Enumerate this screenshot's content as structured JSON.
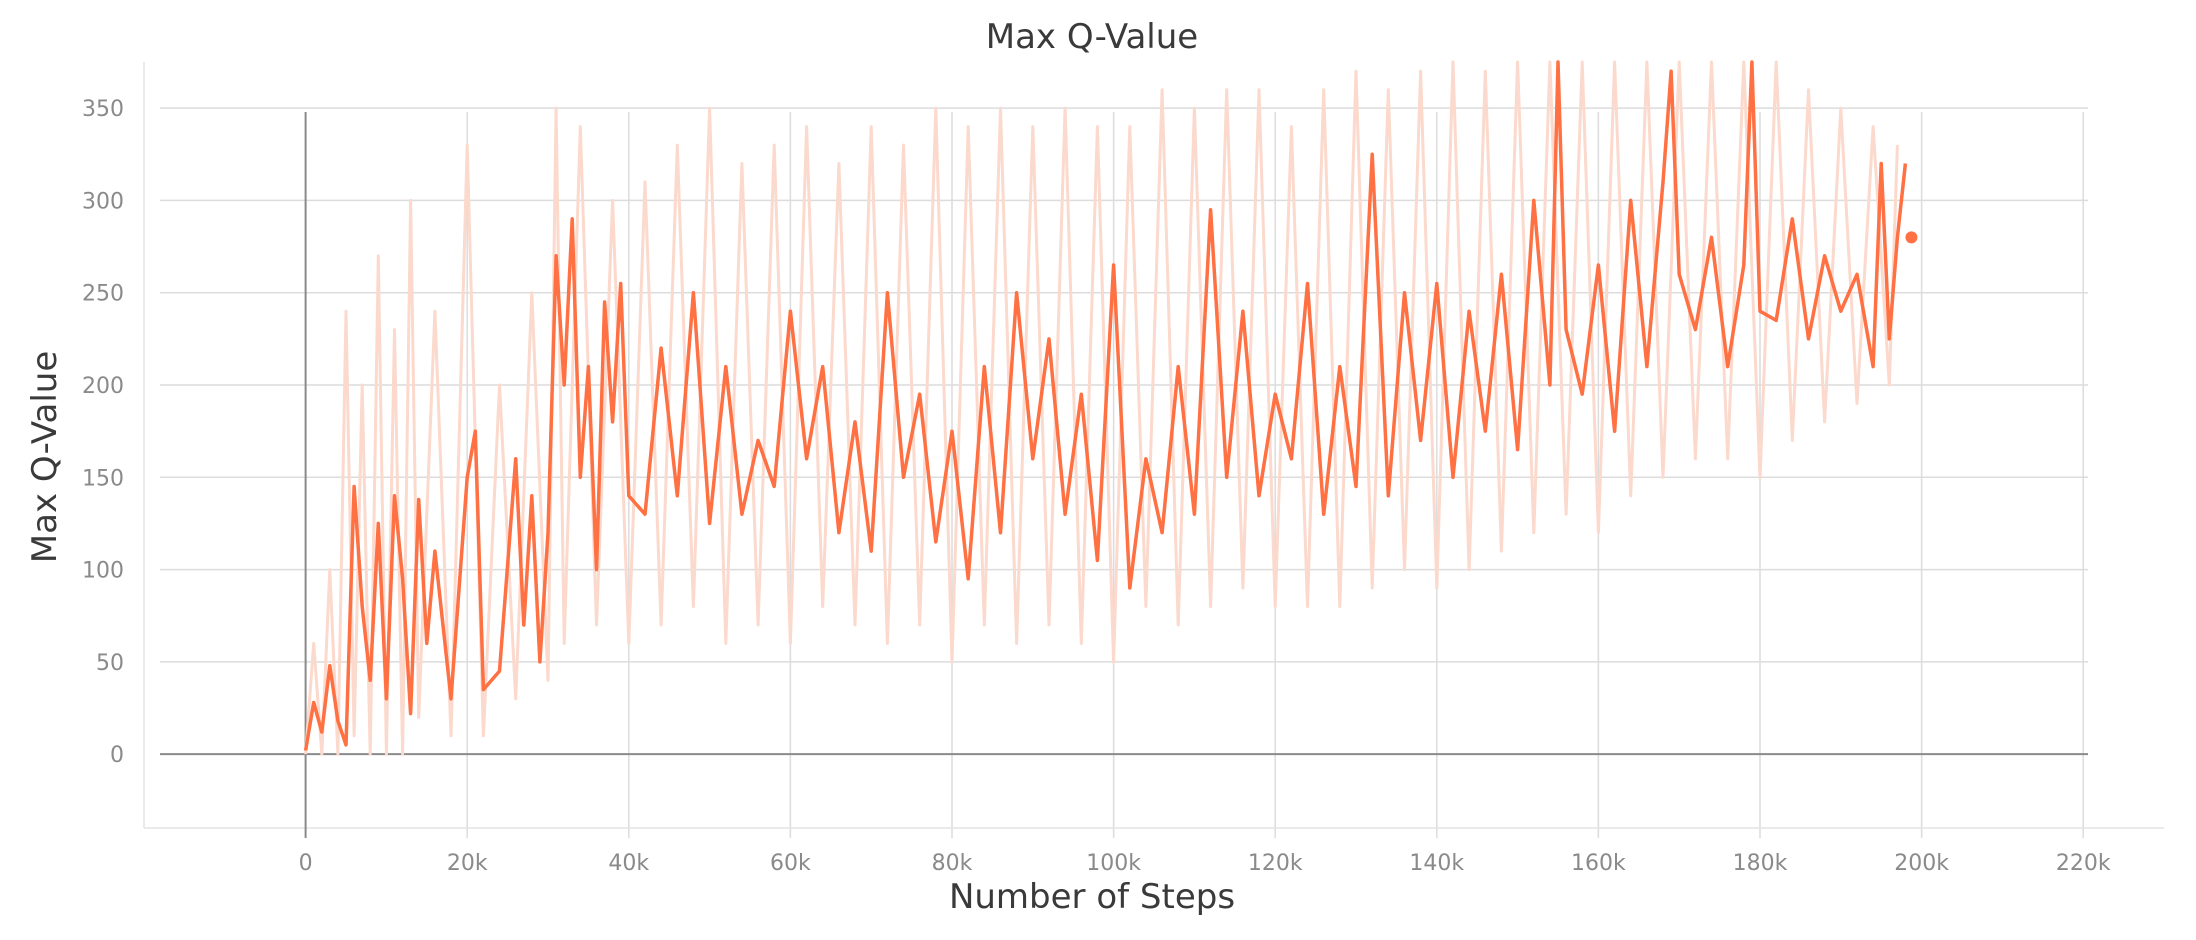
{
  "chart_data": {
    "type": "line",
    "title": "Max Q-Value",
    "xlabel": "Number of Steps",
    "ylabel": "Max Q-Value",
    "xlim": [
      -20000,
      230000
    ],
    "ylim": [
      -40,
      375
    ],
    "x_ticks": [
      0,
      20000,
      40000,
      60000,
      80000,
      100000,
      120000,
      140000,
      160000,
      180000,
      200000,
      220000
    ],
    "x_tick_labels": [
      "0",
      "20k",
      "40k",
      "60k",
      "80k",
      "100k",
      "120k",
      "140k",
      "160k",
      "180k",
      "200k",
      "220k"
    ],
    "y_ticks": [
      0,
      50,
      100,
      150,
      200,
      250,
      300,
      350
    ],
    "y_tick_labels": [
      "0",
      "50",
      "100",
      "150",
      "200",
      "250",
      "300",
      "350"
    ],
    "grid": true,
    "legend": "none",
    "colors": {
      "smoothed": "#ff7043",
      "raw": "#fbd9cc",
      "grid": "#e0e0e0",
      "axis": "#9e9e9e"
    },
    "series": [
      {
        "role": "smoothed",
        "x": [
          0,
          1000,
          2000,
          3000,
          4000,
          5000,
          6000,
          7000,
          8000,
          9000,
          10000,
          11000,
          12000,
          13000,
          14000,
          15000,
          16000,
          18000,
          20000,
          21000,
          22000,
          24000,
          26000,
          27000,
          28000,
          29000,
          30000,
          31000,
          32000,
          33000,
          34000,
          35000,
          36000,
          37000,
          38000,
          39000,
          40000,
          42000,
          44000,
          46000,
          48000,
          50000,
          52000,
          54000,
          56000,
          58000,
          60000,
          62000,
          64000,
          66000,
          68000,
          70000,
          72000,
          74000,
          76000,
          78000,
          80000,
          82000,
          84000,
          86000,
          88000,
          90000,
          92000,
          94000,
          96000,
          98000,
          100000,
          102000,
          104000,
          106000,
          108000,
          110000,
          112000,
          114000,
          116000,
          118000,
          120000,
          122000,
          124000,
          126000,
          128000,
          130000,
          132000,
          134000,
          136000,
          138000,
          140000,
          142000,
          144000,
          146000,
          148000,
          150000,
          152000,
          154000,
          155000,
          156000,
          158000,
          160000,
          162000,
          164000,
          166000,
          168000,
          169000,
          170000,
          172000,
          174000,
          176000,
          178000,
          179000,
          180000,
          182000,
          184000,
          186000,
          188000,
          190000,
          192000,
          194000,
          195000,
          196000,
          197000,
          198000
        ],
        "y": [
          2,
          28,
          12,
          48,
          18,
          5,
          145,
          80,
          40,
          125,
          30,
          140,
          95,
          22,
          138,
          60,
          110,
          30,
          150,
          175,
          35,
          45,
          160,
          70,
          140,
          50,
          120,
          270,
          200,
          290,
          150,
          210,
          100,
          245,
          180,
          255,
          140,
          130,
          220,
          140,
          250,
          125,
          210,
          130,
          170,
          145,
          240,
          160,
          210,
          120,
          180,
          110,
          250,
          150,
          195,
          115,
          175,
          95,
          210,
          120,
          250,
          160,
          225,
          130,
          195,
          105,
          265,
          90,
          160,
          120,
          210,
          130,
          295,
          150,
          240,
          140,
          195,
          160,
          255,
          130,
          210,
          145,
          325,
          140,
          250,
          170,
          255,
          150,
          240,
          175,
          260,
          165,
          300,
          200,
          375,
          230,
          195,
          265,
          175,
          300,
          210,
          310,
          370,
          260,
          230,
          280,
          210,
          265,
          375,
          240,
          235,
          290,
          225,
          270,
          240,
          260,
          210,
          320,
          225,
          280,
          320
        ]
      },
      {
        "role": "raw",
        "x": [
          0,
          1000,
          2000,
          3000,
          4000,
          5000,
          6000,
          7000,
          8000,
          9000,
          10000,
          11000,
          12000,
          13000,
          14000,
          16000,
          18000,
          20000,
          22000,
          24000,
          26000,
          28000,
          30000,
          31000,
          32000,
          34000,
          36000,
          38000,
          40000,
          42000,
          44000,
          46000,
          48000,
          50000,
          52000,
          54000,
          56000,
          58000,
          60000,
          62000,
          64000,
          66000,
          68000,
          70000,
          72000,
          74000,
          76000,
          78000,
          80000,
          82000,
          84000,
          86000,
          88000,
          90000,
          92000,
          94000,
          96000,
          98000,
          100000,
          102000,
          104000,
          106000,
          108000,
          110000,
          112000,
          114000,
          116000,
          118000,
          120000,
          122000,
          124000,
          126000,
          128000,
          130000,
          132000,
          134000,
          136000,
          138000,
          140000,
          142000,
          144000,
          146000,
          148000,
          150000,
          152000,
          154000,
          156000,
          158000,
          160000,
          162000,
          164000,
          166000,
          168000,
          170000,
          172000,
          174000,
          176000,
          178000,
          180000,
          182000,
          184000,
          186000,
          188000,
          190000,
          192000,
          194000,
          196000,
          197000
        ],
        "y": [
          0,
          60,
          0,
          100,
          0,
          240,
          10,
          200,
          0,
          270,
          0,
          230,
          0,
          300,
          20,
          240,
          10,
          330,
          10,
          200,
          30,
          250,
          40,
          350,
          60,
          340,
          70,
          300,
          60,
          310,
          70,
          330,
          80,
          350,
          60,
          320,
          70,
          330,
          60,
          340,
          80,
          320,
          70,
          340,
          60,
          330,
          70,
          350,
          50,
          340,
          70,
          350,
          60,
          340,
          70,
          350,
          60,
          340,
          50,
          340,
          80,
          360,
          70,
          350,
          80,
          360,
          90,
          360,
          80,
          340,
          80,
          360,
          80,
          370,
          90,
          360,
          100,
          370,
          90,
          375,
          100,
          370,
          110,
          375,
          120,
          375,
          130,
          375,
          120,
          375,
          140,
          375,
          150,
          375,
          160,
          375,
          160,
          375,
          150,
          375,
          170,
          360,
          180,
          350,
          190,
          340,
          200,
          330
        ]
      }
    ]
  }
}
